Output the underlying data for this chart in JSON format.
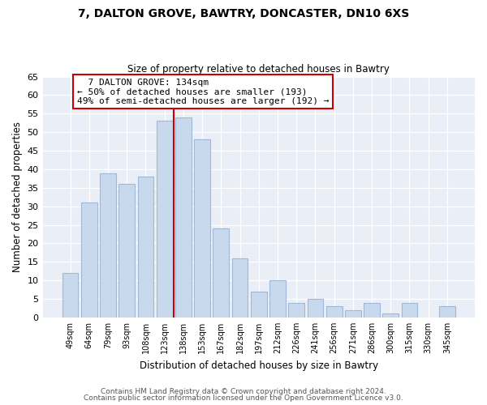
{
  "title1": "7, DALTON GROVE, BAWTRY, DONCASTER, DN10 6XS",
  "title2": "Size of property relative to detached houses in Bawtry",
  "xlabel": "Distribution of detached houses by size in Bawtry",
  "ylabel": "Number of detached properties",
  "bar_labels": [
    "49sqm",
    "64sqm",
    "79sqm",
    "93sqm",
    "108sqm",
    "123sqm",
    "138sqm",
    "153sqm",
    "167sqm",
    "182sqm",
    "197sqm",
    "212sqm",
    "226sqm",
    "241sqm",
    "256sqm",
    "271sqm",
    "286sqm",
    "300sqm",
    "315sqm",
    "330sqm",
    "345sqm"
  ],
  "bar_values": [
    12,
    31,
    39,
    36,
    38,
    53,
    54,
    48,
    24,
    16,
    7,
    10,
    4,
    5,
    3,
    2,
    4,
    1,
    4,
    0,
    3
  ],
  "bar_color": "#c9d9ed",
  "bar_edge_color": "#a0b8d8",
  "highlight_index": 6,
  "highlight_line_color": "#cc0000",
  "ylim": [
    0,
    65
  ],
  "yticks": [
    0,
    5,
    10,
    15,
    20,
    25,
    30,
    35,
    40,
    45,
    50,
    55,
    60,
    65
  ],
  "annotation_title": "7 DALTON GROVE: 134sqm",
  "annotation_line1": "← 50% of detached houses are smaller (193)",
  "annotation_line2": "49% of semi-detached houses are larger (192) →",
  "annotation_box_edge": "#cc0000",
  "footer1": "Contains HM Land Registry data © Crown copyright and database right 2024.",
  "footer2": "Contains public sector information licensed under the Open Government Licence v3.0.",
  "background_color": "#ffffff",
  "plot_bg_color": "#eaeff7"
}
